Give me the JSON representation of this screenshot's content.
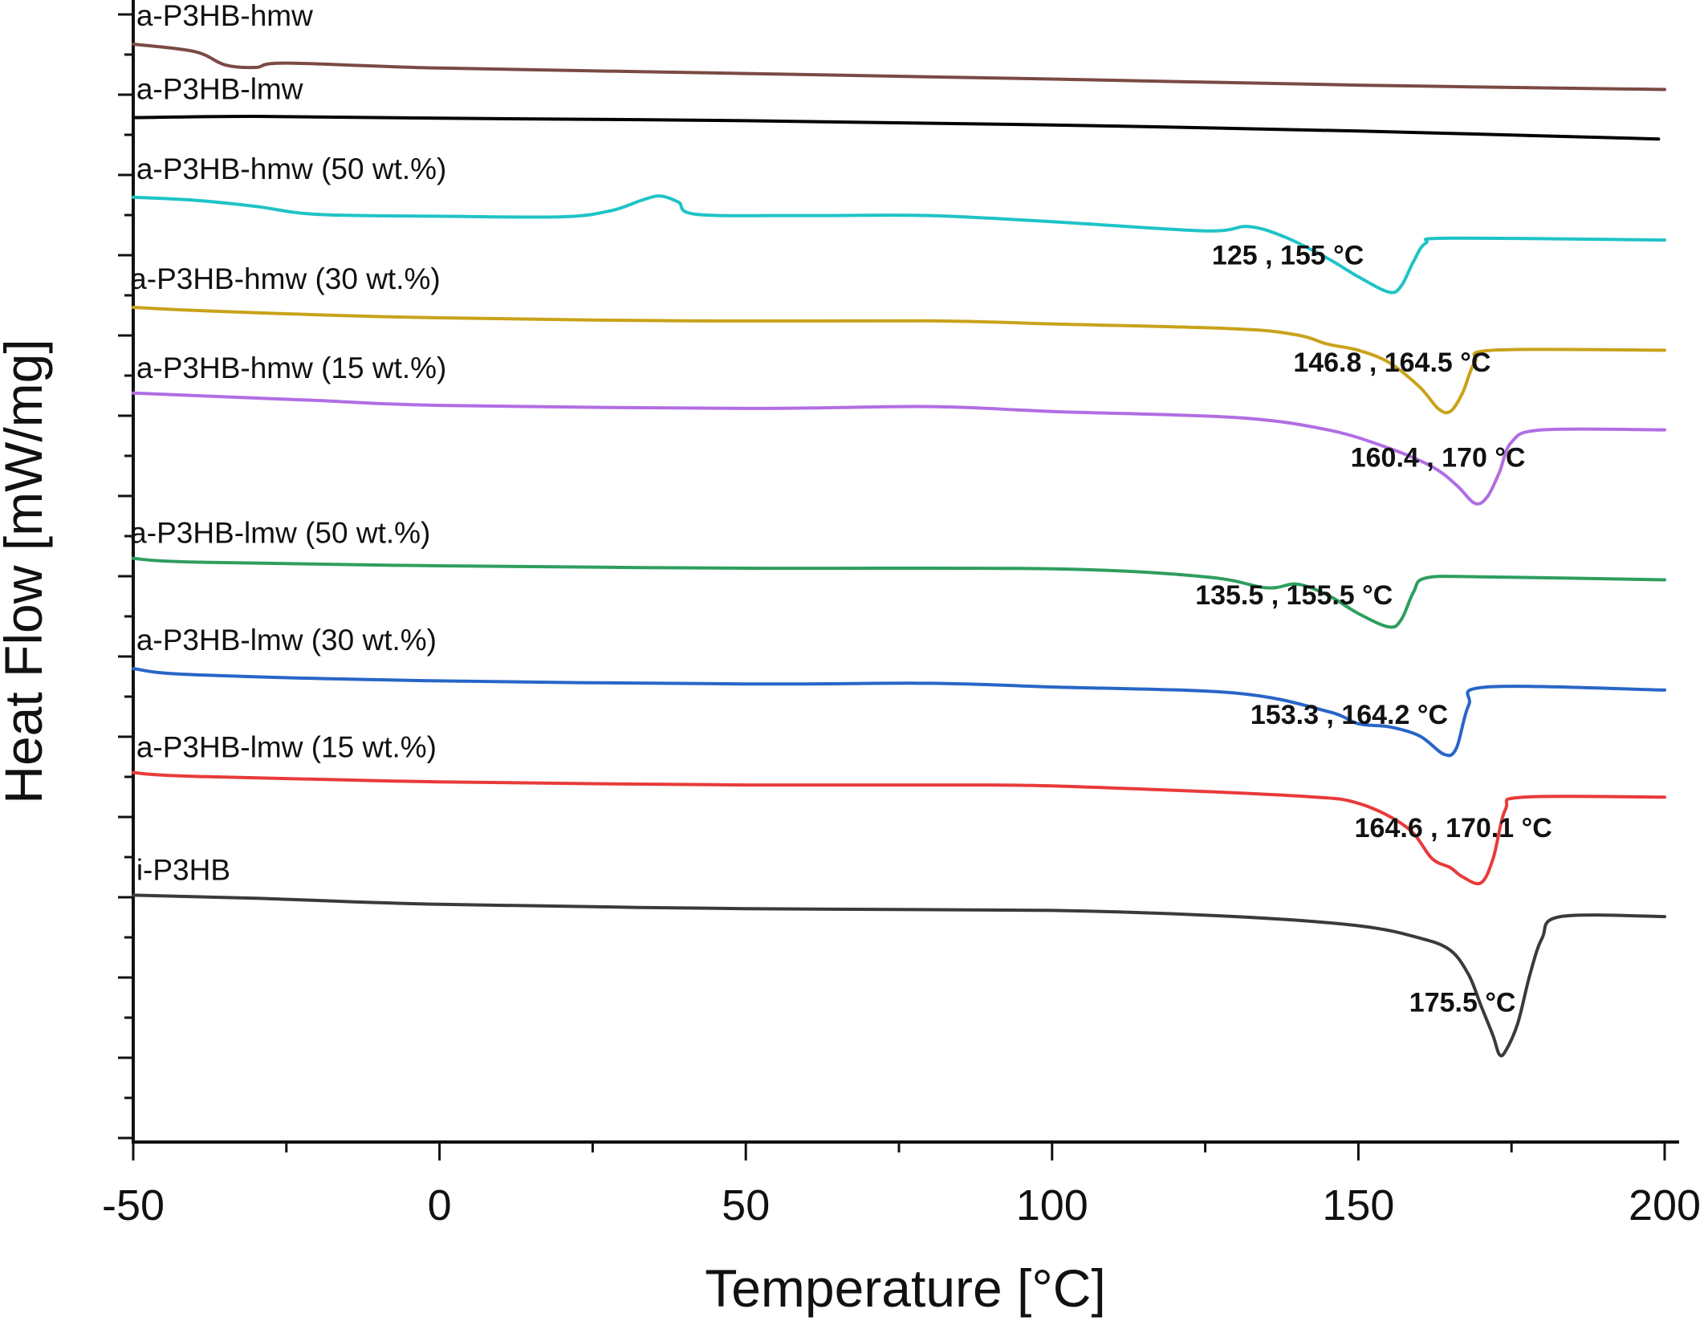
{
  "chart_data": {
    "type": "line",
    "xlabel": "Temperature [°C]",
    "ylabel": "Heat Flow [mW/mg]",
    "xlim": [
      -50,
      200
    ],
    "x_ticks": [
      -50,
      0,
      50,
      100,
      150,
      200
    ],
    "y_tick_labels": "none",
    "grid": false,
    "legend": "none (curves labelled inline)",
    "series": [
      {
        "name": "a-P3HB-hmw",
        "color": "#7a4a45",
        "label_x": -49.5,
        "label_y": 1.03,
        "points": [
          [
            -50,
            1.0
          ],
          [
            -40,
            0.988
          ],
          [
            -35,
            0.966
          ],
          [
            -30,
            0.962
          ],
          [
            -25,
            0.969
          ],
          [
            0,
            0.961
          ],
          [
            50,
            0.952
          ],
          [
            100,
            0.943
          ],
          [
            150,
            0.933
          ],
          [
            200,
            0.926
          ]
        ]
      },
      {
        "name": "a-P3HB-lmw",
        "color": "#000000",
        "label_x": -49.5,
        "label_y": 0.91,
        "points": [
          [
            -50,
            0.88
          ],
          [
            -30,
            0.882
          ],
          [
            0,
            0.879
          ],
          [
            50,
            0.875
          ],
          [
            100,
            0.868
          ],
          [
            150,
            0.858
          ],
          [
            199,
            0.845
          ]
        ]
      },
      {
        "name": "a-P3HB-hmw (50 wt.%)",
        "color": "#1fc3c6",
        "label_x": -49.5,
        "label_y": 0.78,
        "points": [
          [
            -50,
            0.75
          ],
          [
            -40,
            0.745
          ],
          [
            -30,
            0.735
          ],
          [
            -20,
            0.722
          ],
          [
            0,
            0.719
          ],
          [
            20,
            0.718
          ],
          [
            28,
            0.728
          ],
          [
            33,
            0.745
          ],
          [
            36,
            0.752
          ],
          [
            39,
            0.742
          ],
          [
            42,
            0.722
          ],
          [
            60,
            0.72
          ],
          [
            80,
            0.72
          ],
          [
            100,
            0.71
          ],
          [
            125,
            0.695
          ],
          [
            132,
            0.702
          ],
          [
            138,
            0.685
          ],
          [
            145,
            0.65
          ],
          [
            150,
            0.62
          ],
          [
            155,
            0.595
          ],
          [
            157,
            0.605
          ],
          [
            159,
            0.645
          ],
          [
            161,
            0.675
          ],
          [
            165,
            0.683
          ],
          [
            200,
            0.68
          ]
        ]
      },
      {
        "name": "a-P3HB-hmw (30 wt.%)",
        "color": "#c9a21a",
        "label_x": -50.5,
        "label_y": 0.6,
        "points": [
          [
            -50,
            0.57
          ],
          [
            -40,
            0.565
          ],
          [
            -20,
            0.558
          ],
          [
            0,
            0.553
          ],
          [
            40,
            0.548
          ],
          [
            80,
            0.548
          ],
          [
            100,
            0.543
          ],
          [
            130,
            0.535
          ],
          [
            140,
            0.525
          ],
          [
            145,
            0.51
          ],
          [
            150,
            0.5
          ],
          [
            155,
            0.48
          ],
          [
            160,
            0.44
          ],
          [
            163,
            0.405
          ],
          [
            165,
            0.4
          ],
          [
            167,
            0.43
          ],
          [
            169,
            0.48
          ],
          [
            172,
            0.5
          ],
          [
            200,
            0.5
          ]
        ]
      },
      {
        "name": "a-P3HB-hmw (15 wt.%)",
        "color": "#b16ee3",
        "label_x": -49.5,
        "label_y": 0.455,
        "points": [
          [
            -50,
            0.43
          ],
          [
            -40,
            0.426
          ],
          [
            -20,
            0.418
          ],
          [
            0,
            0.41
          ],
          [
            50,
            0.405
          ],
          [
            80,
            0.408
          ],
          [
            100,
            0.4
          ],
          [
            130,
            0.39
          ],
          [
            145,
            0.37
          ],
          [
            155,
            0.34
          ],
          [
            162,
            0.31
          ],
          [
            166,
            0.28
          ],
          [
            169,
            0.25
          ],
          [
            171,
            0.26
          ],
          [
            173,
            0.3
          ],
          [
            175,
            0.35
          ],
          [
            180,
            0.37
          ],
          [
            200,
            0.37
          ]
        ]
      },
      {
        "name": "a-P3HB-lmw (50 wt.%)",
        "color": "#2e9e5e",
        "label_x": -50.5,
        "label_y": 0.185,
        "points": [
          [
            -50,
            0.16
          ],
          [
            -40,
            0.154
          ],
          [
            0,
            0.148
          ],
          [
            50,
            0.144
          ],
          [
            100,
            0.143
          ],
          [
            125,
            0.13
          ],
          [
            135,
            0.112
          ],
          [
            140,
            0.118
          ],
          [
            145,
            0.1
          ],
          [
            150,
            0.07
          ],
          [
            155,
            0.048
          ],
          [
            157,
            0.06
          ],
          [
            159,
            0.105
          ],
          [
            161,
            0.128
          ],
          [
            170,
            0.13
          ],
          [
            200,
            0.125
          ]
        ]
      },
      {
        "name": "a-P3HB-lmw (30 wt.%)",
        "color": "#2865c8",
        "label_x": -49.5,
        "label_y": 0.01,
        "points": [
          [
            -50,
            -0.02
          ],
          [
            -40,
            -0.03
          ],
          [
            0,
            -0.04
          ],
          [
            50,
            -0.045
          ],
          [
            80,
            -0.044
          ],
          [
            100,
            -0.05
          ],
          [
            130,
            -0.06
          ],
          [
            145,
            -0.09
          ],
          [
            150,
            -0.11
          ],
          [
            155,
            -0.115
          ],
          [
            160,
            -0.13
          ],
          [
            164,
            -0.16
          ],
          [
            166,
            -0.15
          ],
          [
            168,
            -0.08
          ],
          [
            171,
            -0.05
          ],
          [
            200,
            -0.055
          ]
        ]
      },
      {
        "name": "a-P3HB-lmw (15 wt.%)",
        "color": "#e83a3a",
        "label_x": -49.5,
        "label_y": -0.165,
        "points": [
          [
            -50,
            -0.19
          ],
          [
            -40,
            -0.196
          ],
          [
            0,
            -0.205
          ],
          [
            50,
            -0.21
          ],
          [
            90,
            -0.21
          ],
          [
            110,
            -0.215
          ],
          [
            140,
            -0.228
          ],
          [
            150,
            -0.24
          ],
          [
            158,
            -0.28
          ],
          [
            162,
            -0.33
          ],
          [
            165,
            -0.345
          ],
          [
            167,
            -0.36
          ],
          [
            170,
            -0.37
          ],
          [
            172,
            -0.33
          ],
          [
            174,
            -0.25
          ],
          [
            177,
            -0.23
          ],
          [
            200,
            -0.23
          ]
        ]
      },
      {
        "name": "i-P3HB",
        "color": "#3a3a3a",
        "label_x": -49.5,
        "label_y": -0.365,
        "points": [
          [
            -50,
            -0.39
          ],
          [
            -30,
            -0.395
          ],
          [
            0,
            -0.405
          ],
          [
            50,
            -0.412
          ],
          [
            100,
            -0.415
          ],
          [
            130,
            -0.425
          ],
          [
            150,
            -0.44
          ],
          [
            160,
            -0.46
          ],
          [
            165,
            -0.48
          ],
          [
            168,
            -0.52
          ],
          [
            170,
            -0.57
          ],
          [
            172,
            -0.62
          ],
          [
            173,
            -0.65
          ],
          [
            174,
            -0.645
          ],
          [
            176,
            -0.6
          ],
          [
            178,
            -0.52
          ],
          [
            180,
            -0.46
          ],
          [
            183,
            -0.425
          ],
          [
            200,
            -0.425
          ]
        ]
      }
    ],
    "annotations": [
      {
        "text": "125 , 155 °C",
        "x": 138.5,
        "y": 0.64
      },
      {
        "text": "146.8 , 164.5 °C",
        "x": 155.5,
        "y": 0.465
      },
      {
        "text": "160.4 , 170 °C",
        "x": 163,
        "y": 0.31
      },
      {
        "text": "135.5 , 155.5 °C",
        "x": 139.5,
        "y": 0.085
      },
      {
        "text": "153.3 , 164.2 °C",
        "x": 148.5,
        "y": -0.11
      },
      {
        "text": "164.6 , 170.1 °C",
        "x": 165.5,
        "y": -0.295
      },
      {
        "text": "175.5 °C",
        "x": 167,
        "y": -0.58
      }
    ]
  }
}
